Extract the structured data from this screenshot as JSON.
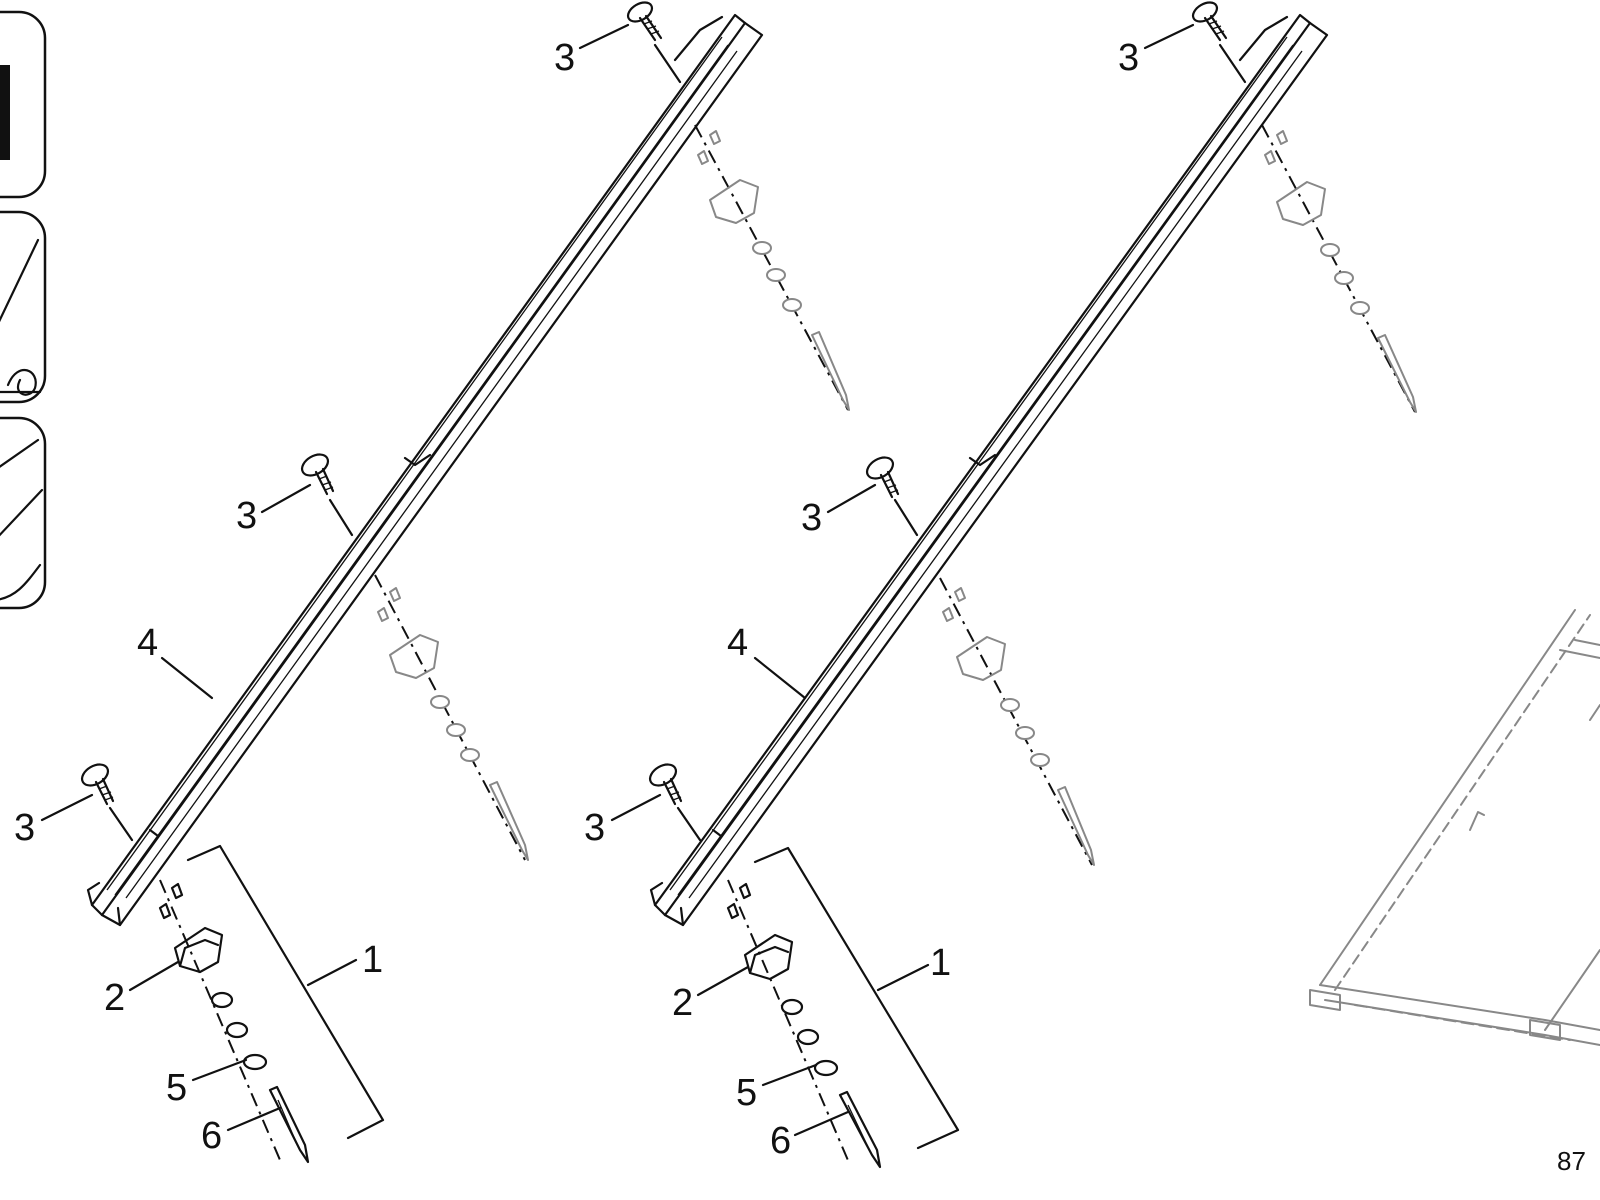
{
  "callouts": {
    "one": "1",
    "two": "2",
    "three": "3",
    "four": "4",
    "five": "5",
    "six": "6"
  },
  "document_number": "87",
  "colors": {
    "line": "#111111",
    "ghost": "#888888",
    "background": "#ffffff"
  }
}
